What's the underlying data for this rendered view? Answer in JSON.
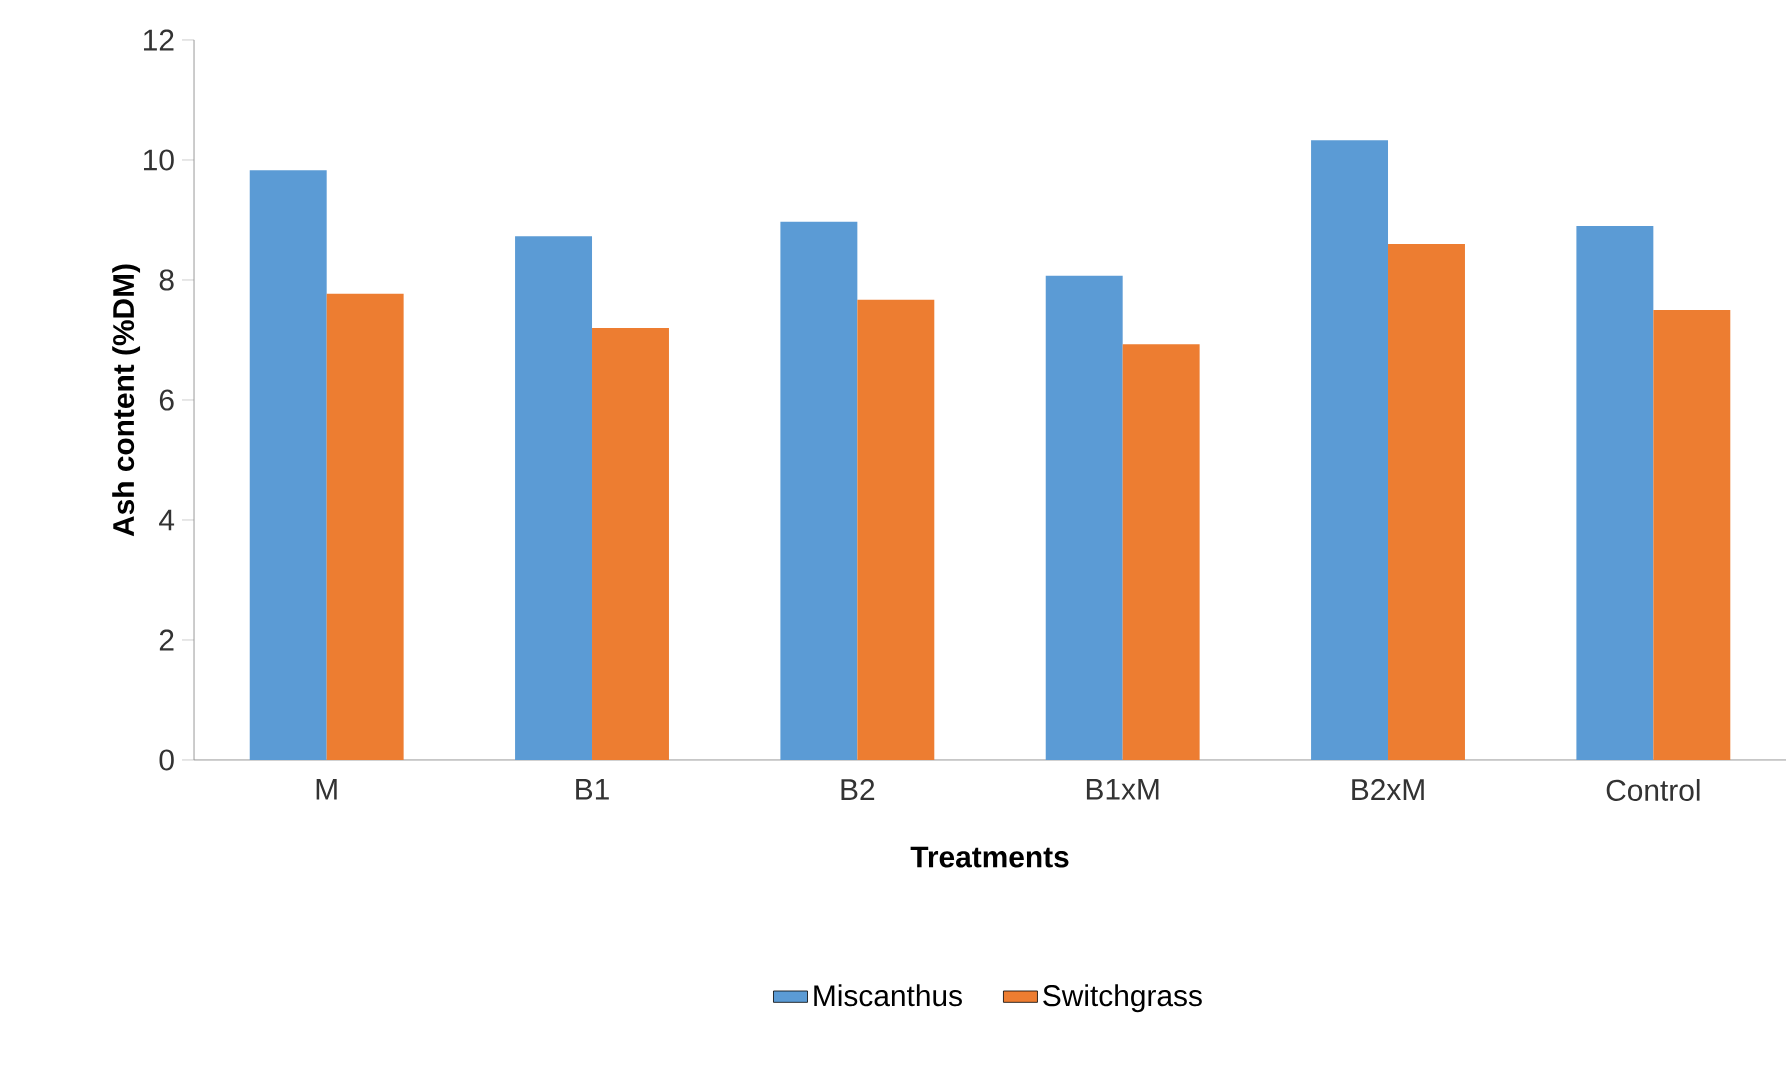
{
  "chart_data": {
    "type": "bar",
    "xlabel": "Treatments",
    "ylabel": "Ash content (%DM)",
    "categories": [
      "M",
      "B1",
      "B2",
      "B1xM",
      "B2xM",
      "Control"
    ],
    "series": [
      {
        "name": "Miscanthus",
        "color": "#5b9bd5",
        "values": [
          9.83,
          8.73,
          8.97,
          8.07,
          10.33,
          8.9
        ]
      },
      {
        "name": "Switchgrass",
        "color": "#ed7d31",
        "values": [
          7.77,
          7.2,
          7.67,
          6.93,
          8.6,
          7.5
        ]
      }
    ],
    "ylim": [
      0,
      12
    ],
    "yticks": [
      0,
      2,
      4,
      6,
      8,
      10,
      12
    ],
    "grid": false,
    "legend": "bottom"
  }
}
